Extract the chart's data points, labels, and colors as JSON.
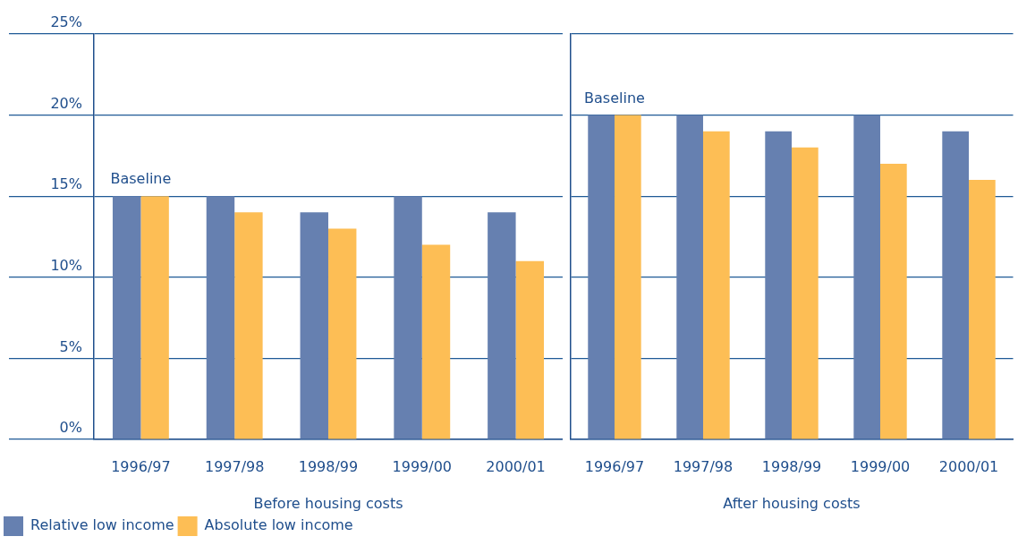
{
  "chart_data": [
    {
      "type": "bar",
      "xlabel": "Before housing costs",
      "categories": [
        "1996/97",
        "1997/98",
        "1998/99",
        "1999/00",
        "2000/01"
      ],
      "series": [
        {
          "name": "Relative low income",
          "color": "#6680b0",
          "values": [
            15,
            15,
            14,
            15,
            14
          ]
        },
        {
          "name": "Absolute low income",
          "color": "#fdbe55",
          "values": [
            15,
            14,
            13,
            12,
            11
          ]
        }
      ],
      "ylim": [
        0,
        25
      ],
      "yticks": [
        {
          "value": 0,
          "label": "0%"
        },
        {
          "value": 5,
          "label": "5%"
        },
        {
          "value": 10,
          "label": "10%"
        },
        {
          "value": 15,
          "label": "15%"
        },
        {
          "value": 20,
          "label": "20%"
        },
        {
          "value": 25,
          "label": "25%"
        }
      ],
      "grid": "y",
      "legend": "bottom left",
      "annotations": [
        {
          "text": "Baseline",
          "x": "1996/97",
          "y": 15
        }
      ]
    },
    {
      "type": "bar",
      "xlabel": "After housing costs",
      "categories": [
        "1996/97",
        "1997/98",
        "1998/99",
        "1999/00",
        "2000/01"
      ],
      "series": [
        {
          "color": "#6680b0",
          "values": [
            20,
            20,
            19,
            20,
            19
          ]
        },
        {
          "color": "#fdbe55",
          "values": [
            20,
            19,
            18,
            17,
            16
          ]
        }
      ],
      "ylim": [
        0,
        25
      ],
      "yticks": [
        0,
        5,
        10,
        15,
        20,
        25
      ],
      "grid": "y",
      "tick_labels": "x",
      "annotations": [
        {
          "text": "Baseline",
          "x": "1996/97",
          "y": 20
        }
      ]
    }
  ]
}
